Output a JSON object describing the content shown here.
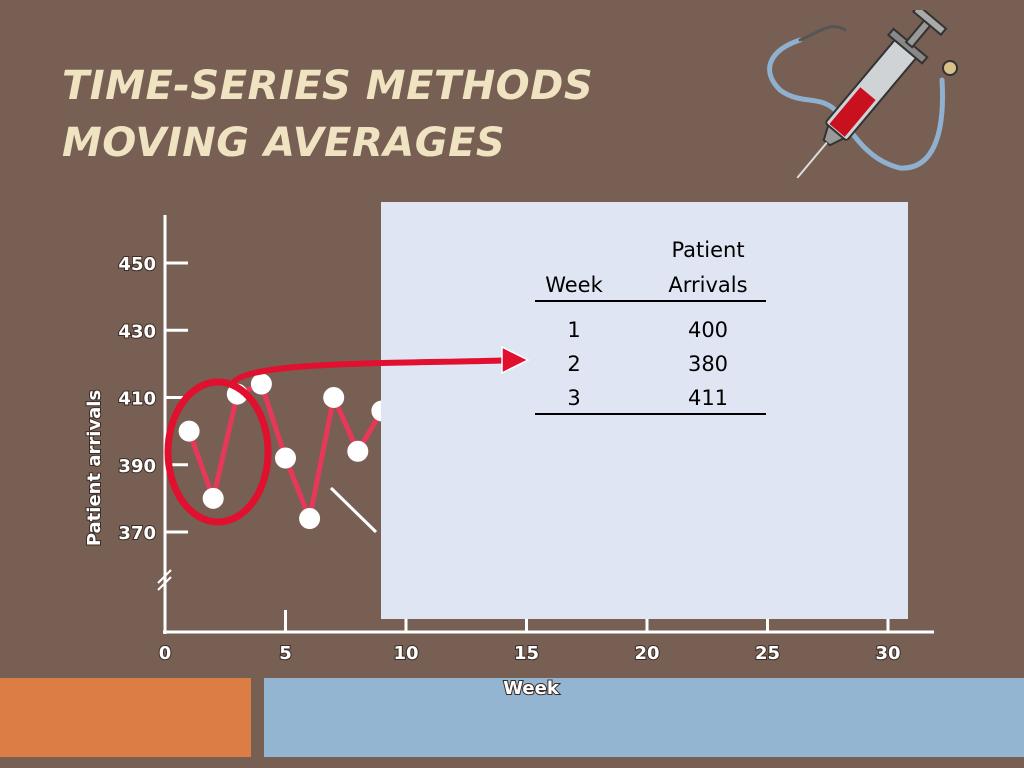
{
  "title": {
    "line1": "TIME-SERIES METHODS",
    "line2": "MOVING AVERAGES"
  },
  "colors": {
    "background": "#775f53",
    "title": "#efe3c2",
    "series_line": "#e8385a",
    "highlight": "#e0102e",
    "table_panel": "#dfe5f2",
    "bar_left": "#dc7d45",
    "bar_right": "#94b5d2"
  },
  "icons": [
    "syringe-icon",
    "stethoscope-icon"
  ],
  "table": {
    "headers": {
      "week": "Week",
      "arrivals_top": "Patient",
      "arrivals_bottom": "Arrivals"
    },
    "rows": [
      {
        "week": "1",
        "arrivals": "400"
      },
      {
        "week": "2",
        "arrivals": "380"
      },
      {
        "week": "3",
        "arrivals": "411"
      }
    ]
  },
  "chart_data": {
    "type": "line",
    "xlabel": "Week",
    "ylabel": "Patient arrivals",
    "xlim": [
      0,
      30
    ],
    "ylim": [
      370,
      450
    ],
    "y_axis_break": true,
    "grid": false,
    "x_ticks": [
      "0",
      "5",
      "10",
      "15",
      "20",
      "25",
      "30"
    ],
    "y_ticks": [
      "450",
      "430",
      "410",
      "390",
      "370"
    ],
    "x": [
      1,
      2,
      3,
      4,
      5,
      6,
      7,
      8,
      9
    ],
    "values": [
      400,
      380,
      411,
      414,
      392,
      374,
      410,
      394,
      406
    ],
    "highlighted_weeks": [
      1,
      2,
      3
    ]
  }
}
